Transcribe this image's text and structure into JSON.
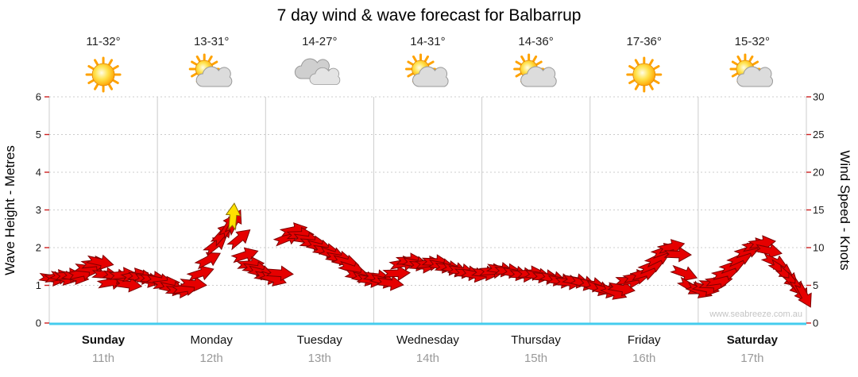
{
  "title": "7 day wind & wave forecast for Balbarrup",
  "watermark": "www.seabreeze.com.au",
  "axes": {
    "left_label": "Wave Height - Metres",
    "right_label": "Wind Speed - Knots",
    "left_ticks": [
      0,
      1,
      2,
      3,
      4,
      5,
      6
    ],
    "right_ticks": [
      0,
      5,
      10,
      15,
      20,
      25,
      30
    ]
  },
  "days": [
    {
      "name": "Sunday",
      "date": "11th",
      "temp": "11-32°",
      "icon": "sunny",
      "weekend": true
    },
    {
      "name": "Monday",
      "date": "12th",
      "temp": "13-31°",
      "icon": "partly-cloudy",
      "weekend": false
    },
    {
      "name": "Tuesday",
      "date": "13th",
      "temp": "14-27°",
      "icon": "cloudy",
      "weekend": false
    },
    {
      "name": "Wednesday",
      "date": "14th",
      "temp": "14-31°",
      "icon": "partly-cloudy",
      "weekend": false
    },
    {
      "name": "Thursday",
      "date": "15th",
      "temp": "14-36°",
      "icon": "partly-cloudy",
      "weekend": false
    },
    {
      "name": "Friday",
      "date": "16th",
      "temp": "17-36°",
      "icon": "sunny",
      "weekend": false
    },
    {
      "name": "Saturday",
      "date": "17th",
      "temp": "15-32°",
      "icon": "partly-cloudy",
      "weekend": true
    }
  ],
  "colors": {
    "arrow_fill": "#e60000",
    "arrow_stroke": "#7e0000",
    "highlight_fill": "#ffe100",
    "highlight_stroke": "#8a7000",
    "baseline": "#44ccee",
    "grid": "#cccccc",
    "tick": "#cc2222",
    "axis_number": "#1a1a1a",
    "sun_ray": "#ffa200",
    "sun_edge": "#e08600",
    "cloud_back": "#cfcfcf",
    "cloud_front": "#e4e4e4",
    "cloud_edge": "#999999"
  },
  "chart_data": {
    "type": "scatter",
    "title": "7 day wind & wave forecast for Balbarrup",
    "description": "Wind speed/direction arrows over 7 days; arrows plotted against right axis in knots",
    "x_unit": "day fraction from start (0 = Sunday 11th, 7 = end of Saturday 17th)",
    "categories": [
      "Sunday 11th",
      "Monday 12th",
      "Tuesday 13th",
      "Wednesday 14th",
      "Thursday 15th",
      "Friday 16th",
      "Saturday 17th"
    ],
    "y_axis_left": {
      "label": "Wave Height - Metres",
      "range": [
        0,
        6
      ]
    },
    "y_axis_right": {
      "label": "Wind Speed - Knots",
      "range": [
        0,
        30
      ]
    },
    "grid": true,
    "point_format": [
      "day_fraction",
      "wind_speed_knots",
      "direction_deg"
    ],
    "points": [
      [
        0.03,
        5.9,
        8
      ],
      [
        0.08,
        6.1,
        -8
      ],
      [
        0.13,
        6.0,
        14
      ],
      [
        0.18,
        6.3,
        -4
      ],
      [
        0.24,
        6.1,
        10
      ],
      [
        0.3,
        6.6,
        -12
      ],
      [
        0.36,
        7.2,
        6
      ],
      [
        0.42,
        7.9,
        -6
      ],
      [
        0.47,
        8.1,
        12
      ],
      [
        0.52,
        6.4,
        4
      ],
      [
        0.57,
        5.4,
        -10
      ],
      [
        0.62,
        6.2,
        10
      ],
      [
        0.68,
        6.4,
        -6
      ],
      [
        0.73,
        5.1,
        8
      ],
      [
        0.79,
        6.3,
        -12
      ],
      [
        0.85,
        6.1,
        6
      ],
      [
        0.91,
        5.7,
        12
      ],
      [
        0.96,
        5.9,
        2
      ],
      [
        1.02,
        5.6,
        10
      ],
      [
        1.08,
        5.2,
        -6
      ],
      [
        1.14,
        4.6,
        12
      ],
      [
        1.2,
        4.3,
        4
      ],
      [
        1.26,
        4.6,
        -8
      ],
      [
        1.33,
        5.2,
        6
      ],
      [
        1.4,
        6.6,
        -18
      ],
      [
        1.47,
        8.4,
        -28
      ],
      [
        1.54,
        10.4,
        -38
      ],
      [
        1.6,
        11.8,
        -48
      ],
      [
        1.66,
        12.9,
        -58
      ],
      [
        1.71,
        13.4,
        -62
      ],
      [
        1.76,
        11.2,
        -40
      ],
      [
        1.81,
        9.0,
        -18
      ],
      [
        1.86,
        7.8,
        -4
      ],
      [
        1.91,
        7.2,
        8
      ],
      [
        1.96,
        6.7,
        14
      ],
      [
        2.02,
        6.1,
        10
      ],
      [
        2.07,
        5.9,
        18
      ],
      [
        2.13,
        6.6,
        4
      ],
      [
        2.2,
        11.3,
        -22
      ],
      [
        2.26,
        12.3,
        -12
      ],
      [
        2.32,
        11.7,
        -2
      ],
      [
        2.38,
        11.1,
        8
      ],
      [
        2.44,
        10.6,
        4
      ],
      [
        2.5,
        10.1,
        14
      ],
      [
        2.56,
        9.6,
        8
      ],
      [
        2.62,
        9.1,
        18
      ],
      [
        2.68,
        8.6,
        10
      ],
      [
        2.74,
        8.1,
        14
      ],
      [
        2.8,
        7.2,
        18
      ],
      [
        2.86,
        6.3,
        10
      ],
      [
        2.92,
        5.9,
        14
      ],
      [
        2.97,
        5.7,
        8
      ],
      [
        3.03,
        6.1,
        6
      ],
      [
        3.09,
        5.6,
        14
      ],
      [
        3.15,
        5.3,
        8
      ],
      [
        3.21,
        6.6,
        -2
      ],
      [
        3.27,
        7.9,
        -10
      ],
      [
        3.33,
        8.3,
        -2
      ],
      [
        3.39,
        7.9,
        10
      ],
      [
        3.45,
        7.6,
        4
      ],
      [
        3.51,
        7.9,
        -6
      ],
      [
        3.57,
        8.1,
        2
      ],
      [
        3.63,
        7.6,
        10
      ],
      [
        3.69,
        7.3,
        6
      ],
      [
        3.75,
        7.1,
        14
      ],
      [
        3.81,
        6.9,
        8
      ],
      [
        3.87,
        6.6,
        4
      ],
      [
        3.93,
        6.4,
        10
      ],
      [
        4.03,
        6.6,
        6
      ],
      [
        4.1,
        6.9,
        -4
      ],
      [
        4.17,
        7.1,
        8
      ],
      [
        4.24,
        6.9,
        2
      ],
      [
        4.31,
        6.6,
        10
      ],
      [
        4.38,
        6.4,
        4
      ],
      [
        4.45,
        6.6,
        -4
      ],
      [
        4.52,
        6.3,
        8
      ],
      [
        4.59,
        6.1,
        4
      ],
      [
        4.66,
        5.9,
        12
      ],
      [
        4.73,
        5.6,
        8
      ],
      [
        4.8,
        5.4,
        4
      ],
      [
        4.87,
        5.6,
        10
      ],
      [
        4.94,
        5.3,
        14
      ],
      [
        5.02,
        5.1,
        10
      ],
      [
        5.08,
        4.6,
        18
      ],
      [
        5.15,
        4.3,
        14
      ],
      [
        5.22,
        4.1,
        22
      ],
      [
        5.29,
        4.6,
        10
      ],
      [
        5.36,
        5.6,
        0
      ],
      [
        5.43,
        6.1,
        -10
      ],
      [
        5.5,
        6.6,
        -16
      ],
      [
        5.57,
        7.6,
        -22
      ],
      [
        5.63,
        8.6,
        -26
      ],
      [
        5.69,
        9.6,
        -20
      ],
      [
        5.75,
        10.1,
        -14
      ],
      [
        5.81,
        9.1,
        2
      ],
      [
        5.87,
        6.6,
        20
      ],
      [
        5.93,
        4.8,
        30
      ],
      [
        6.01,
        4.3,
        22
      ],
      [
        6.07,
        4.6,
        12
      ],
      [
        6.13,
        5.1,
        2
      ],
      [
        6.19,
        5.6,
        -8
      ],
      [
        6.25,
        6.6,
        -14
      ],
      [
        6.32,
        7.6,
        -20
      ],
      [
        6.39,
        8.6,
        -24
      ],
      [
        6.46,
        9.6,
        -18
      ],
      [
        6.53,
        10.3,
        -12
      ],
      [
        6.59,
        10.6,
        -8
      ],
      [
        6.65,
        9.6,
        12
      ],
      [
        6.71,
        8.1,
        24
      ],
      [
        6.77,
        7.1,
        32
      ],
      [
        6.83,
        6.1,
        42
      ],
      [
        6.89,
        5.1,
        50
      ],
      [
        6.94,
        4.3,
        56
      ],
      [
        6.98,
        3.7,
        62
      ]
    ],
    "highlight_point": {
      "day_fraction": 1.7,
      "wind_speed_knots": 14.1,
      "direction_deg": -85,
      "color": "#ffe100"
    }
  }
}
